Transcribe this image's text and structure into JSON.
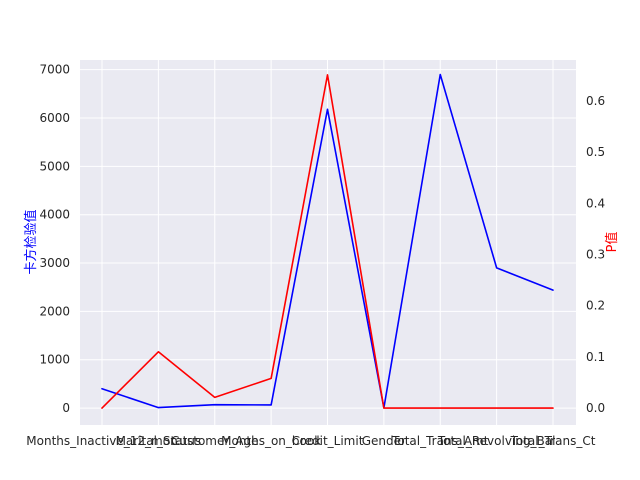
{
  "chart_data": {
    "type": "line",
    "categories": [
      "Months_Inactive_12_mon",
      "Marital_Status",
      "Customer_Age",
      "Months_on_book",
      "Credit_Limit",
      "Gender",
      "Total_Trans_Amt",
      "Total_Revolving_Bal",
      "Total_Trans_Ct"
    ],
    "series": [
      {
        "name": "",
        "axis": "left",
        "color": "#0000ff",
        "values": [
          400,
          10,
          70,
          65,
          6180,
          5,
          6900,
          2900,
          2440
        ]
      },
      {
        "name": "",
        "axis": "right",
        "color": "#ff0000",
        "values": [
          0.0,
          0.11,
          0.021,
          0.058,
          0.651,
          0.0,
          0.0,
          0.0,
          0.0
        ]
      }
    ],
    "ylabel_left": "卡方检验值",
    "ylabel_right": "P值",
    "ylim_left": [
      -350,
      7200
    ],
    "ylim_right": [
      -0.033,
      0.68
    ],
    "yticks_left": [
      0,
      1000,
      2000,
      3000,
      4000,
      5000,
      6000,
      7000
    ],
    "yticks_right": [
      0.0,
      0.1,
      0.2,
      0.3,
      0.4,
      0.5,
      0.6
    ],
    "ytick_labels_right": [
      "0.0",
      "0.1",
      "0.2",
      "0.3",
      "0.4",
      "0.5",
      "0.6"
    ],
    "grid": true,
    "background": "#eaeaf2",
    "left_label_color": "#0000ff",
    "right_label_color": "#ff0000"
  }
}
